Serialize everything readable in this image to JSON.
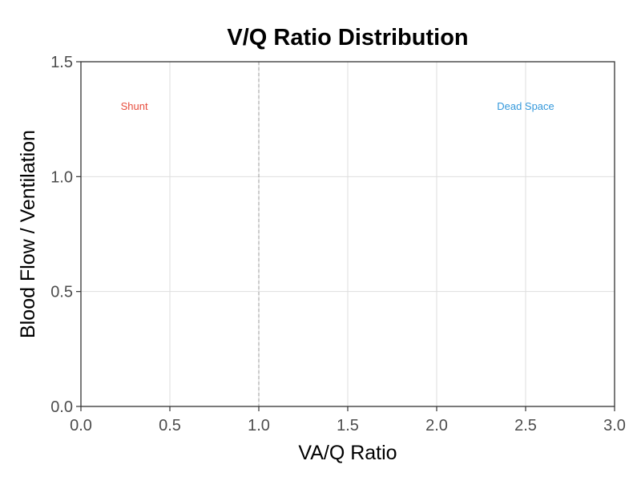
{
  "chart_data": {
    "type": "line",
    "title": "V/Q Ratio Distribution",
    "xlabel": "VA/Q Ratio",
    "ylabel": "Blood Flow / Ventilation",
    "xlim": [
      0,
      3
    ],
    "ylim": [
      0,
      1.5
    ],
    "x_ticks": [
      0,
      0.5,
      1,
      1.5,
      2,
      2.5,
      3
    ],
    "x_tick_labels": [
      "0.0",
      "0.5",
      "1.0",
      "1.5",
      "2.0",
      "2.5",
      "3.0"
    ],
    "y_ticks": [
      0,
      0.5,
      1,
      1.5
    ],
    "y_tick_labels": [
      "0.0",
      "0.5",
      "1.0",
      "1.5"
    ],
    "grid": true,
    "series": [],
    "reference_lines": [
      {
        "axis": "x",
        "value": 1.0,
        "style": "dashed",
        "color": "#999999"
      }
    ],
    "annotations": [
      {
        "text": "Shunt",
        "x": 0.3,
        "y": 1.29,
        "color": "#e74c3c"
      },
      {
        "text": "Dead Space",
        "x": 2.5,
        "y": 1.29,
        "color": "#3498db"
      }
    ]
  }
}
